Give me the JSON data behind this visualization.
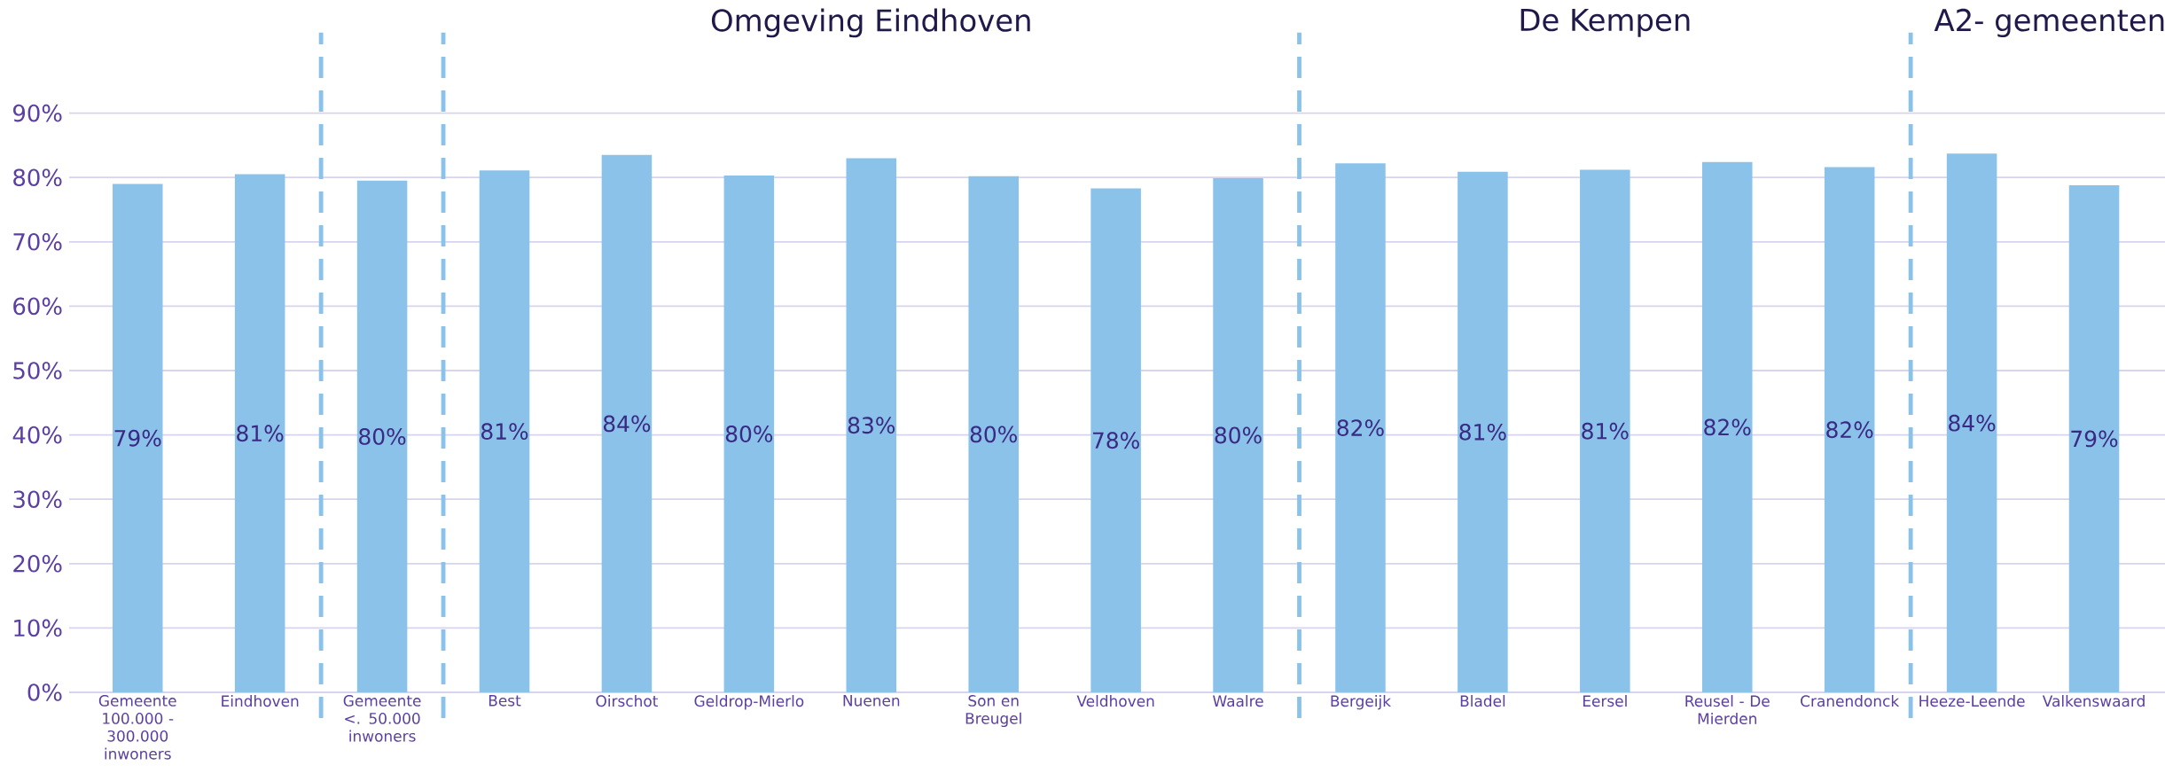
{
  "chart_data": {
    "type": "bar",
    "categories": [
      "Gemeente 100.000 - 300.000 inwoners",
      "Eindhoven",
      "Gemeente <. 50.000 inwoners",
      "Best",
      "Oirschot",
      "Geldrop-Mierlo",
      "Nuenen",
      "Son en Breugel",
      "Veldhoven",
      "Waalre",
      "Bergeijk",
      "Bladel",
      "Eersel",
      "Reusel - De Mierden",
      "Cranendonck",
      "Heeze-Leende",
      "Valkenswaard"
    ],
    "values": [
      79.0,
      80.5,
      79.5,
      81.1,
      83.5,
      80.3,
      83.0,
      80.2,
      78.3,
      79.9,
      82.2,
      80.9,
      81.2,
      82.4,
      81.6,
      83.7,
      78.8
    ],
    "value_labels": [
      "79%",
      "81%",
      "80%",
      "81%",
      "84%",
      "80%",
      "83%",
      "80%",
      "78%",
      "80%",
      "82%",
      "81%",
      "81%",
      "82%",
      "82%",
      "84%",
      "79%"
    ],
    "color": "#8ac2ea",
    "ylim": [
      0,
      90
    ],
    "yticks": [
      {
        "value": 0,
        "label": "0%"
      },
      {
        "value": 10,
        "label": "10%"
      },
      {
        "value": 20,
        "label": "20%"
      },
      {
        "value": 30,
        "label": "30%"
      },
      {
        "value": 40,
        "label": "40%"
      },
      {
        "value": 50,
        "label": "50%"
      },
      {
        "value": 60,
        "label": "60%"
      },
      {
        "value": 70,
        "label": "70%"
      },
      {
        "value": 80,
        "label": "80%"
      },
      {
        "value": 90,
        "label": "90%"
      }
    ],
    "grid": "y",
    "annotations": [
      "Omgeving Eindhoven",
      "De Kempen",
      "A2- gemeenten"
    ]
  }
}
